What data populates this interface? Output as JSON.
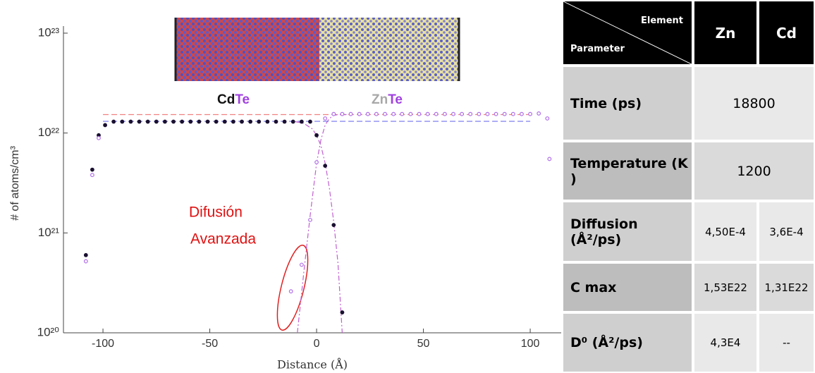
{
  "chart_data": {
    "type": "scatter",
    "log_y": true,
    "x_label": "Distance (Å)",
    "y_label": "# of atoms/cm³",
    "xlim": [
      -118.5,
      114.5
    ],
    "xticks": [
      -100,
      -50,
      0,
      50,
      100
    ],
    "ylim": [
      1e+20,
      1e+23
    ],
    "yticks": [
      {
        "value": 1e+20,
        "label": "10²⁰"
      },
      {
        "value": 1e+21,
        "label": "10²¹"
      },
      {
        "value": 1e+22,
        "label": "10²²"
      },
      {
        "value": 1e+23,
        "label": "10²³"
      }
    ],
    "compound_labels": [
      [
        "Cd",
        "Te"
      ],
      [
        "Zn",
        "Te"
      ]
    ],
    "annotations": [
      "Difusión",
      "Avanzada"
    ],
    "series": [
      {
        "color": "#1a1030",
        "x": [
          -108,
          -105,
          -102,
          -99,
          -95,
          -91,
          -87,
          -83,
          -79,
          -75,
          -71,
          -67,
          -63,
          -59,
          -55,
          -51,
          -47,
          -43,
          -39,
          -35,
          -31,
          -27,
          -23,
          -19,
          -15,
          -11,
          -7,
          -3,
          0,
          4,
          8,
          12
        ],
        "values": [
          6e+20,
          4.3e+21,
          9.5e+21,
          1.2e+22,
          1.3e+22,
          1.3e+22,
          1.3e+22,
          1.3e+22,
          1.3e+22,
          1.3e+22,
          1.3e+22,
          1.3e+22,
          1.3e+22,
          1.3e+22,
          1.3e+22,
          1.3e+22,
          1.3e+22,
          1.3e+22,
          1.3e+22,
          1.3e+22,
          1.3e+22,
          1.3e+22,
          1.3e+22,
          1.3e+22,
          1.3e+22,
          1.3e+22,
          1.3e+22,
          1.3e+22,
          9.5e+21,
          4.7e+21,
          1.2e+21,
          1.6e+20
        ]
      },
      {
        "color": "#b06ee8",
        "x": [
          -108,
          -105,
          -102,
          -12,
          -7,
          -3,
          0,
          4,
          8,
          12,
          16,
          20,
          24,
          28,
          32,
          36,
          40,
          44,
          48,
          52,
          56,
          60,
          64,
          68,
          72,
          76,
          80,
          84,
          88,
          92,
          96,
          100,
          104,
          108,
          109
        ],
        "values": [
          5.2e+20,
          3.8e+21,
          8.9e+21,
          2.6e+20,
          4.8e+20,
          1.35e+21,
          5.1e+21,
          1.4e+22,
          1.55e+22,
          1.55e+22,
          1.55e+22,
          1.55e+22,
          1.55e+22,
          1.55e+22,
          1.55e+22,
          1.55e+22,
          1.55e+22,
          1.55e+22,
          1.55e+22,
          1.55e+22,
          1.55e+22,
          1.55e+22,
          1.55e+22,
          1.55e+22,
          1.55e+22,
          1.55e+22,
          1.55e+22,
          1.55e+22,
          1.55e+22,
          1.55e+22,
          1.55e+22,
          1.55e+22,
          1.57e+22,
          1.4e+22,
          5.5e+21
        ]
      }
    ],
    "reference_lines": [
      {
        "value": 1.53e+22,
        "color": "#f08080",
        "xlim": [
          -100,
          100
        ]
      },
      {
        "value": 1.31e+22,
        "color": "#8a8af0",
        "xlim": [
          -100,
          100
        ]
      }
    ],
    "fits": [
      {
        "color": "#c060d0",
        "x": [
          -10,
          -6,
          -2,
          0,
          2,
          4,
          6,
          8,
          10,
          12
        ],
        "values": [
          1.3e+22,
          1.25e+22,
          1.1e+22,
          9.5e+21,
          7.5e+21,
          5e+21,
          2.8e+21,
          1.3e+21,
          5e+20,
          1e+20
        ]
      },
      {
        "color": "#c060d0",
        "x": [
          -9,
          -6,
          -3,
          0,
          2,
          4,
          6,
          8,
          10,
          14
        ],
        "values": [
          1e+20,
          4e+20,
          1.5e+21,
          5e+21,
          8.5e+21,
          1.2e+22,
          1.4e+22,
          1.5e+22,
          1.53e+22,
          1.53e+22
        ]
      }
    ]
  },
  "table": {
    "header": {
      "element": "Element",
      "parameter": "Parameter",
      "columns": [
        "Zn",
        "Cd"
      ]
    },
    "rows": [
      [
        "Time (ps)",
        "18800"
      ],
      [
        "Temperature (K )",
        "1200"
      ],
      [
        "Diffusion (Å²/ps)",
        "4,50E-4",
        "3,6E-4"
      ],
      [
        "C max",
        "1,53E22",
        "1,31E22"
      ],
      [
        "D⁰ (Å²/ps)",
        "4,3E4",
        "--"
      ]
    ]
  }
}
